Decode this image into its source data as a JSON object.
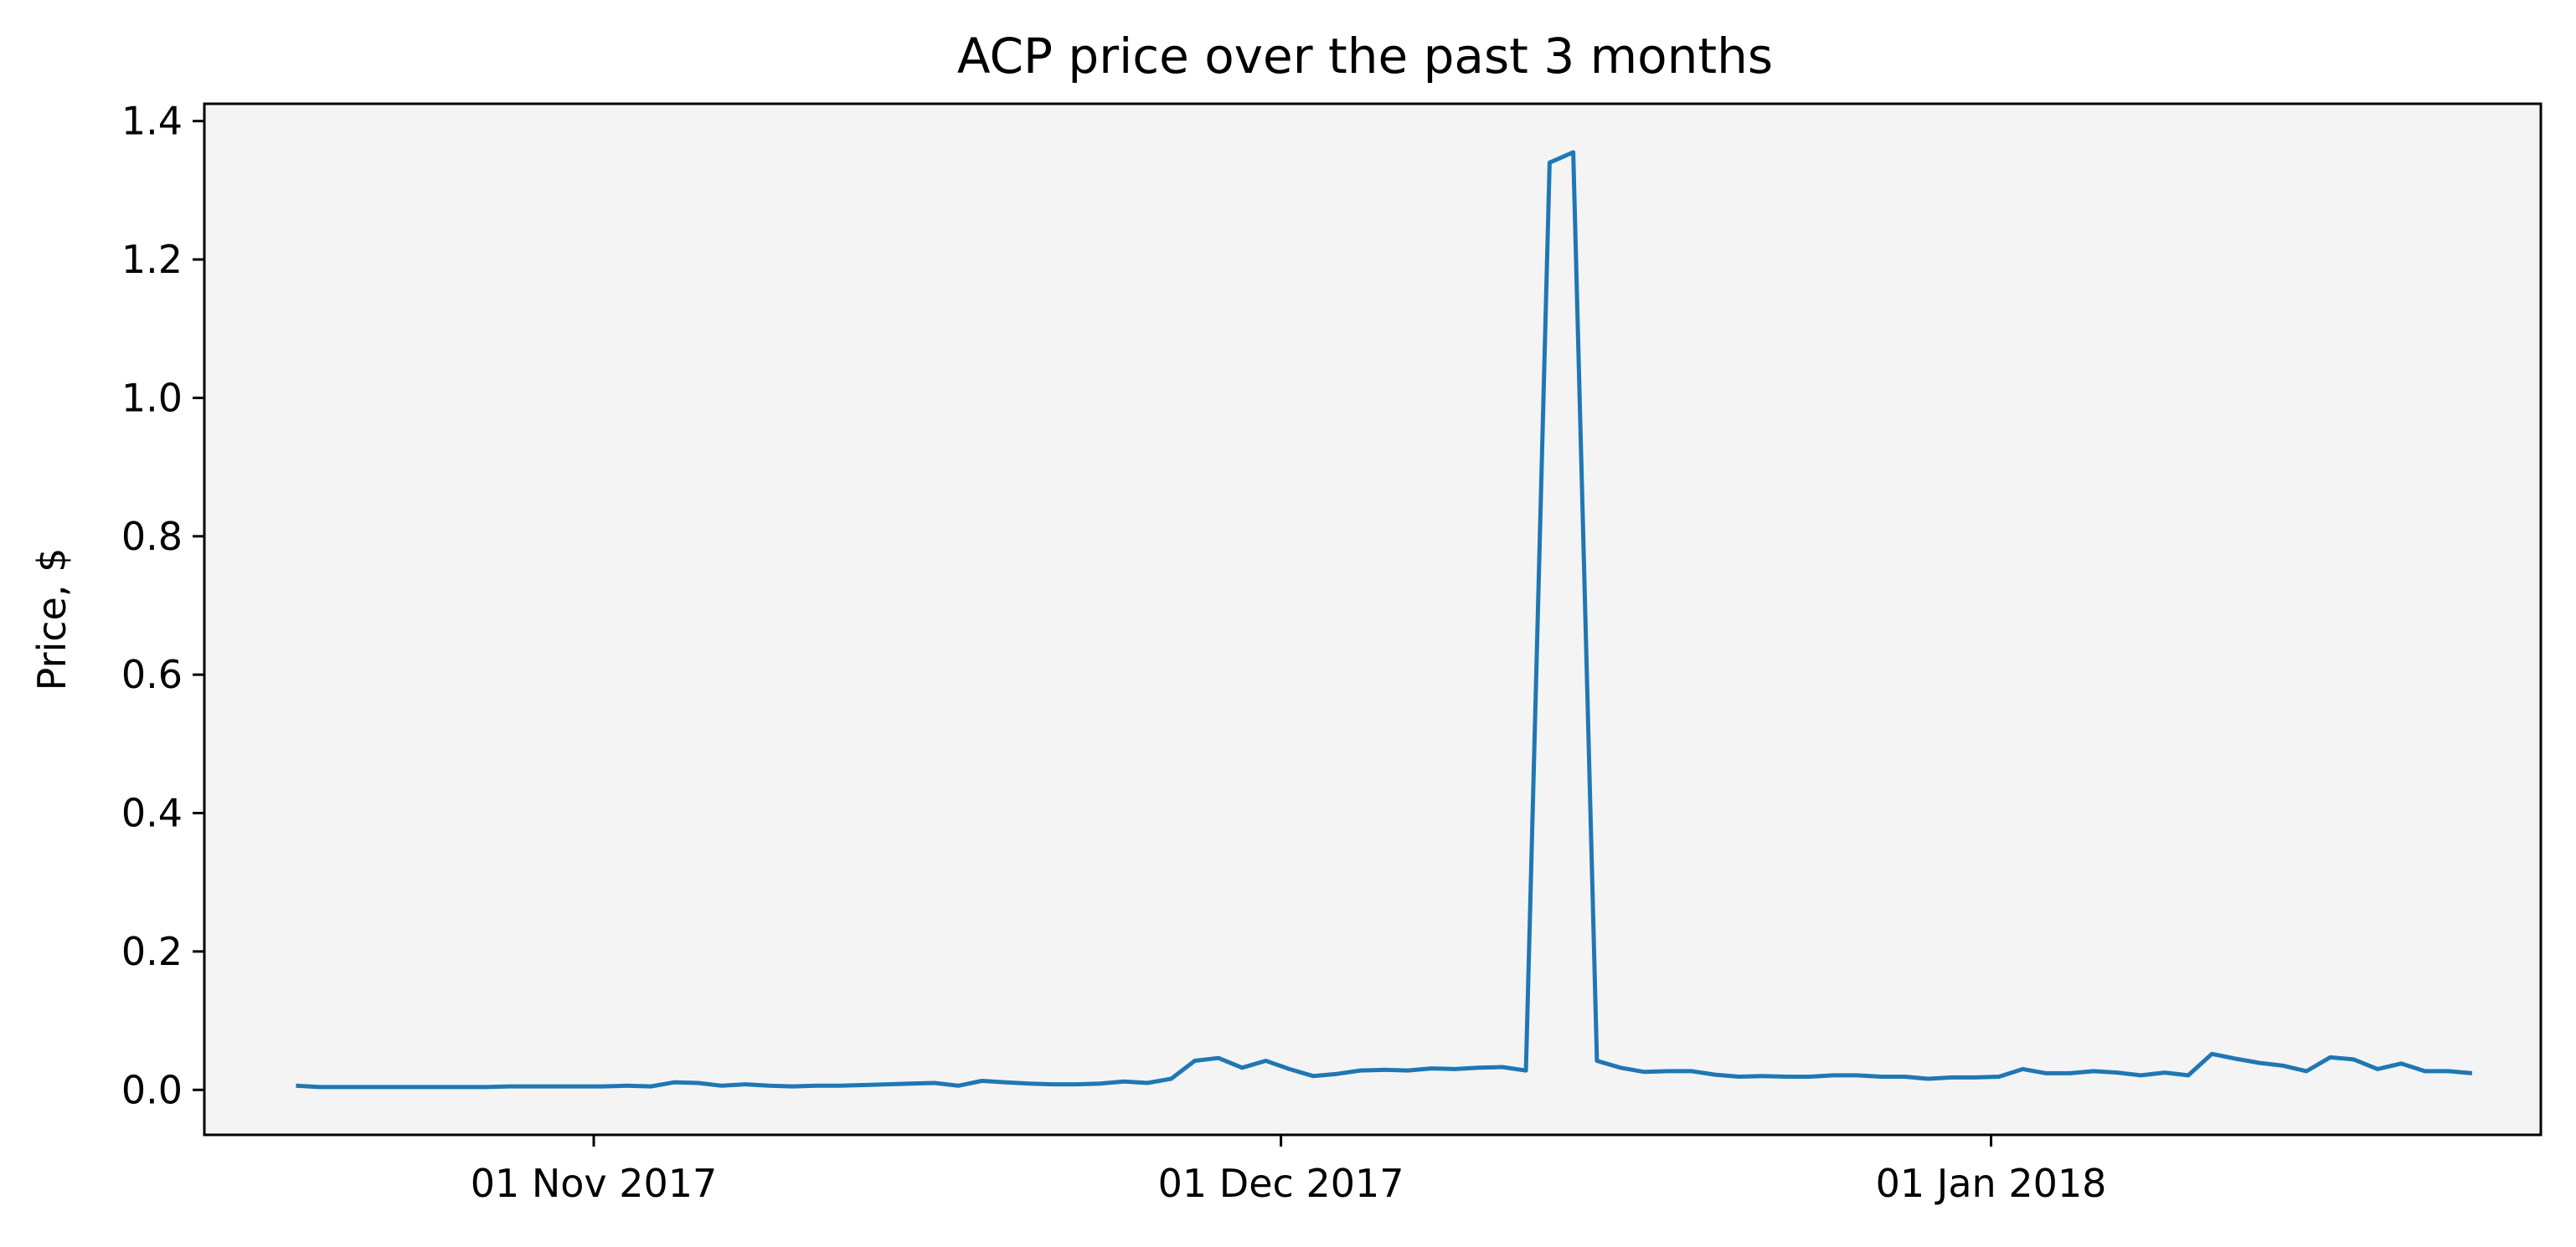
{
  "chart_data": {
    "type": "line",
    "title": "ACP price over the past 3 months",
    "xlabel": "",
    "ylabel": "Price, $",
    "start_date": "2017-10-19",
    "end_date": "2018-01-22",
    "xlim": [
      "2017-10-15",
      "2018-01-25"
    ],
    "ylim": [
      -0.065,
      1.425
    ],
    "x_ticks": [
      {
        "date": "2017-11-01",
        "label": "01 Nov 2017"
      },
      {
        "date": "2017-12-01",
        "label": "01 Dec 2017"
      },
      {
        "date": "2018-01-01",
        "label": "01 Jan 2018"
      }
    ],
    "y_ticks": [
      {
        "value": 0.0,
        "label": "0.0"
      },
      {
        "value": 0.2,
        "label": "0.2"
      },
      {
        "value": 0.4,
        "label": "0.4"
      },
      {
        "value": 0.6,
        "label": "0.6"
      },
      {
        "value": 0.8,
        "label": "0.8"
      },
      {
        "value": 1.0,
        "label": "1.0"
      },
      {
        "value": 1.2,
        "label": "1.2"
      },
      {
        "value": 1.4,
        "label": "1.4"
      }
    ],
    "grid": false,
    "plot_background": "#f4f4f4",
    "series": [
      {
        "color": "#1f77b4",
        "values": [
          0.006,
          0.004,
          0.004,
          0.004,
          0.004,
          0.004,
          0.004,
          0.004,
          0.004,
          0.005,
          0.005,
          0.005,
          0.005,
          0.005,
          0.006,
          0.005,
          0.011,
          0.01,
          0.006,
          0.008,
          0.006,
          0.005,
          0.006,
          0.006,
          0.007,
          0.008,
          0.009,
          0.01,
          0.006,
          0.013,
          0.011,
          0.009,
          0.008,
          0.008,
          0.009,
          0.012,
          0.01,
          0.016,
          0.042,
          0.046,
          0.032,
          0.042,
          0.03,
          0.02,
          0.023,
          0.028,
          0.029,
          0.028,
          0.031,
          0.03,
          0.032,
          0.033,
          0.028,
          1.34,
          1.355,
          0.042,
          0.032,
          0.026,
          0.027,
          0.027,
          0.022,
          0.019,
          0.02,
          0.019,
          0.019,
          0.021,
          0.021,
          0.019,
          0.019,
          0.016,
          0.018,
          0.018,
          0.019,
          0.03,
          0.024,
          0.024,
          0.027,
          0.025,
          0.021,
          0.025,
          0.021,
          0.052,
          0.045,
          0.039,
          0.035,
          0.027,
          0.047,
          0.044,
          0.03,
          0.038,
          0.027,
          0.027,
          0.024
        ]
      }
    ]
  }
}
